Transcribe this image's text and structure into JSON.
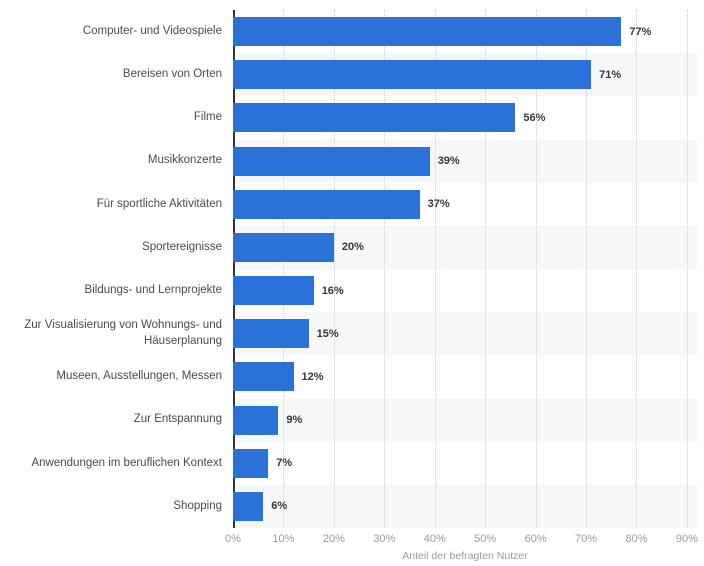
{
  "chart_data": {
    "type": "bar",
    "orientation": "horizontal",
    "title": "",
    "categories": [
      "Computer- und Videospiele",
      "Bereisen von Orten",
      "Filme",
      "Musikkonzerte",
      "Für sportliche Aktivitäten",
      "Sportereignisse",
      "Bildungs- und Lernprojekte",
      "Zur Visualisierung von Wohnungs- und Häuserplanung",
      "Museen, Ausstellungen, Messen",
      "Zur Entspannung",
      "Anwendungen im beruflichen Kontext",
      "Shopping"
    ],
    "values": [
      77,
      71,
      56,
      39,
      37,
      20,
      16,
      15,
      12,
      9,
      7,
      6
    ],
    "value_labels": [
      "77%",
      "71%",
      "56%",
      "39%",
      "37%",
      "20%",
      "16%",
      "15%",
      "12%",
      "9%",
      "7%",
      "6%"
    ],
    "xlabel": "Anteil der befragten Nutzer",
    "ylabel": "",
    "xlim": [
      0,
      92
    ],
    "x_ticks": [
      "0%",
      "10%",
      "20%",
      "30%",
      "40%",
      "50%",
      "60%",
      "70%",
      "80%",
      "90%"
    ],
    "x_tick_values": [
      0,
      10,
      20,
      30,
      40,
      50,
      60,
      70,
      80,
      90
    ],
    "grid": "vertical-dotted",
    "row_striping": "even-rows-shaded",
    "legend": "none",
    "colors": {
      "bar": "#2b72d8",
      "row_stripe": "#f6f7f8",
      "gridline": "#cfcfd4",
      "axis_line": "#333336",
      "category_label": "#4a4a4c",
      "value_label": "#363636",
      "tick_label": "#9a9aa0",
      "axis_title": "#9a9aa0",
      "background": "#ffffff"
    }
  }
}
